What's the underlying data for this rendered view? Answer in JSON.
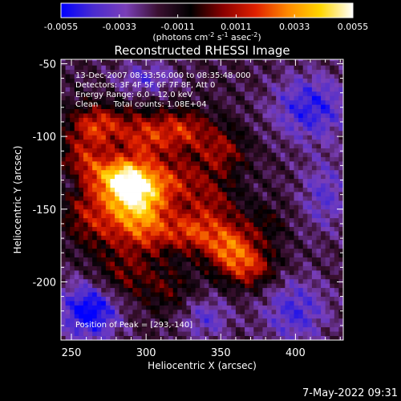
{
  "chart_data": {
    "type": "heatmap",
    "title": "Reconstructed RHESSI Image",
    "xlabel": "Heliocentric X (arcsec)",
    "ylabel": "Heliocentric Y (arcsec)",
    "xlim": [
      243,
      432
    ],
    "ylim": [
      -240,
      -47
    ],
    "x_ticks": [
      250,
      300,
      350,
      400
    ],
    "y_ticks": [
      -50,
      -100,
      -150,
      -200
    ],
    "colorbar": {
      "range": [
        -0.0055,
        0.0055
      ],
      "ticks": [
        "-0.0055",
        "-0.0033",
        "-0.0011",
        "0.0011",
        "0.0033",
        "0.0055"
      ],
      "unit_parts": [
        "(photons cm",
        "-2",
        " s",
        "-1",
        " asec",
        "-2",
        ")"
      ],
      "colors": [
        "#0000ff",
        "#4a2bd0",
        "#7a3fb8",
        "#3a1030",
        "#000000",
        "#8a0000",
        "#e02000",
        "#ff8a00",
        "#ffd600",
        "#ffffff"
      ]
    },
    "annotations": [
      "13-Dec-2007 08:33:56.000 to 08:35:48.000",
      "Detectors: 3F 4F 5F 6F 7F 8F, Att 0",
      "Energy Range: 6.0 - 12.0 keV",
      "Clean      Total counts: 1.08E+04"
    ],
    "peak_label": "Position of Peak = [293,-140]",
    "grid": false
  },
  "footer": {
    "timestamp": "7-May-2022 09:31"
  }
}
